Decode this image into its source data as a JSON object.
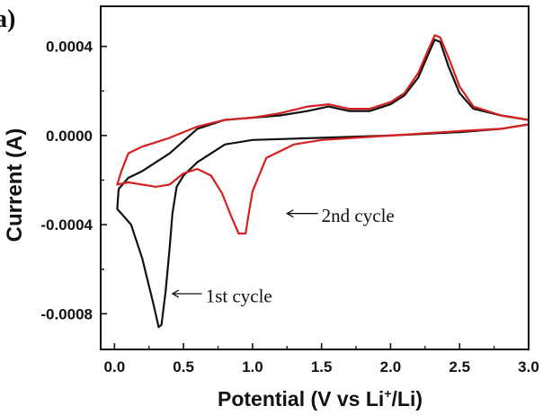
{
  "chart_data": {
    "type": "line",
    "panel_label": "a)",
    "xlabel_main": "Potential (V vs Li",
    "xlabel_sup": "+",
    "xlabel_end": "/Li)",
    "ylabel": "Current (A)",
    "xlim": [
      -0.1,
      3.0
    ],
    "ylim": [
      -0.00096,
      0.00058
    ],
    "x_ticks": [
      {
        "value": 0.0,
        "label": "0.0"
      },
      {
        "value": 0.5,
        "label": "0.5"
      },
      {
        "value": 1.0,
        "label": "1.0"
      },
      {
        "value": 1.5,
        "label": "1.5"
      },
      {
        "value": 2.0,
        "label": "2.0"
      },
      {
        "value": 2.5,
        "label": "2.5"
      },
      {
        "value": 3.0,
        "label": "3.0"
      }
    ],
    "y_ticks": [
      {
        "value": 0.0004,
        "label": "0.0004"
      },
      {
        "value": 0.0,
        "label": "0.0000"
      },
      {
        "value": -0.0004,
        "label": "-0.0004"
      },
      {
        "value": -0.0008,
        "label": "-0.0008"
      }
    ],
    "series": [
      {
        "color": "#111111",
        "points": [
          [
            3.0,
            5e-05
          ],
          [
            2.8,
            3e-05
          ],
          [
            2.5,
            1.5e-05
          ],
          [
            2.0,
            0.0
          ],
          [
            1.5,
            -1e-05
          ],
          [
            1.0,
            -2e-05
          ],
          [
            0.8,
            -4e-05
          ],
          [
            0.6,
            -0.00012
          ],
          [
            0.5,
            -0.00018
          ],
          [
            0.45,
            -0.00023
          ],
          [
            0.42,
            -0.00035
          ],
          [
            0.4,
            -0.0005
          ],
          [
            0.37,
            -0.0007
          ],
          [
            0.34,
            -0.00085
          ],
          [
            0.32,
            -0.00086
          ],
          [
            0.28,
            -0.00075
          ],
          [
            0.2,
            -0.00055
          ],
          [
            0.12,
            -0.0004
          ],
          [
            0.05,
            -0.00035
          ],
          [
            0.02,
            -0.00033
          ],
          [
            0.03,
            -0.00024
          ],
          [
            0.1,
            -0.00019
          ],
          [
            0.2,
            -0.00016
          ],
          [
            0.4,
            -8e-05
          ],
          [
            0.6,
            3e-05
          ],
          [
            0.8,
            7e-05
          ],
          [
            1.0,
            8e-05
          ],
          [
            1.2,
            9e-05
          ],
          [
            1.4,
            0.00011
          ],
          [
            1.55,
            0.00013
          ],
          [
            1.7,
            0.00011
          ],
          [
            1.85,
            0.00011
          ],
          [
            2.0,
            0.00014
          ],
          [
            2.1,
            0.00018
          ],
          [
            2.2,
            0.00026
          ],
          [
            2.27,
            0.00036
          ],
          [
            2.32,
            0.00043
          ],
          [
            2.36,
            0.00042
          ],
          [
            2.42,
            0.00031
          ],
          [
            2.5,
            0.00019
          ],
          [
            2.6,
            0.00012
          ],
          [
            2.8,
            9e-05
          ],
          [
            3.0,
            7e-05
          ]
        ]
      },
      {
        "color": "#d42020",
        "points": [
          [
            3.0,
            5e-05
          ],
          [
            2.8,
            3e-05
          ],
          [
            2.5,
            2e-05
          ],
          [
            2.0,
            0.0
          ],
          [
            1.5,
            -2e-05
          ],
          [
            1.3,
            -4e-05
          ],
          [
            1.1,
            -0.0001
          ],
          [
            1.0,
            -0.00025
          ],
          [
            0.97,
            -0.00036
          ],
          [
            0.95,
            -0.00044
          ],
          [
            0.9,
            -0.00044
          ],
          [
            0.85,
            -0.00037
          ],
          [
            0.78,
            -0.00026
          ],
          [
            0.7,
            -0.00018
          ],
          [
            0.6,
            -0.00015
          ],
          [
            0.5,
            -0.00017
          ],
          [
            0.4,
            -0.00022
          ],
          [
            0.3,
            -0.00023
          ],
          [
            0.2,
            -0.00022
          ],
          [
            0.1,
            -0.00021
          ],
          [
            0.02,
            -0.00022
          ],
          [
            0.05,
            -0.00016
          ],
          [
            0.1,
            -8e-05
          ],
          [
            0.2,
            -5e-05
          ],
          [
            0.4,
            -1e-05
          ],
          [
            0.6,
            4e-05
          ],
          [
            0.8,
            7e-05
          ],
          [
            1.0,
            8e-05
          ],
          [
            1.2,
            0.0001
          ],
          [
            1.4,
            0.00013
          ],
          [
            1.55,
            0.00014
          ],
          [
            1.7,
            0.00012
          ],
          [
            1.85,
            0.00012
          ],
          [
            2.0,
            0.00015
          ],
          [
            2.1,
            0.00019
          ],
          [
            2.2,
            0.00028
          ],
          [
            2.27,
            0.00038
          ],
          [
            2.32,
            0.00045
          ],
          [
            2.36,
            0.00044
          ],
          [
            2.42,
            0.00035
          ],
          [
            2.5,
            0.00022
          ],
          [
            2.6,
            0.00013
          ],
          [
            2.8,
            9e-05
          ],
          [
            3.0,
            7e-05
          ]
        ]
      }
    ],
    "annotations": [
      {
        "text": "2nd cycle",
        "arrow_to": [
          1.25,
          -0.00035
        ],
        "anchor": [
          1.5,
          -0.00036
        ]
      },
      {
        "text": "1st cycle",
        "arrow_to": [
          0.42,
          -0.00071
        ],
        "anchor": [
          0.66,
          -0.00072
        ]
      }
    ]
  }
}
